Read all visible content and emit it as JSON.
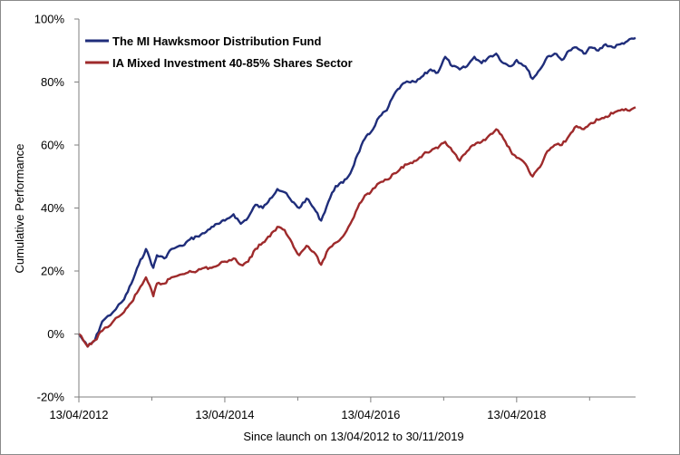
{
  "chart_data": {
    "type": "line",
    "title": "",
    "xlabel": "Since launch on 13/04/2012 to 30/11/2019",
    "ylabel": "Cumulative Performance",
    "x_range": [
      "13/04/2012",
      "30/11/2019"
    ],
    "ylim": [
      -20,
      100
    ],
    "y_unit": "%",
    "y_ticks": [
      -20,
      0,
      20,
      40,
      60,
      80,
      100
    ],
    "y_tick_labels": [
      "-20%",
      "0%",
      "20%",
      "40%",
      "60%",
      "80%",
      "100%"
    ],
    "x_tick_labels": [
      "13/04/2012",
      "13/04/2014",
      "13/04/2016",
      "13/04/2018"
    ],
    "grid": false,
    "legend_position": "top-left",
    "series": [
      {
        "name": "The MI Hawksmoor Distribution Fund",
        "color": "#1f2d7a",
        "x": [
          2012.28,
          2012.4,
          2012.5,
          2012.6,
          2012.75,
          2012.9,
          2013.0,
          2013.1,
          2013.2,
          2013.3,
          2013.35,
          2013.45,
          2013.55,
          2013.7,
          2013.8,
          2013.9,
          2014.0,
          2014.1,
          2014.2,
          2014.28,
          2014.4,
          2014.5,
          2014.6,
          2014.7,
          2014.8,
          2014.9,
          2015.0,
          2015.1,
          2015.2,
          2015.3,
          2015.4,
          2015.5,
          2015.6,
          2015.7,
          2015.8,
          2015.9,
          2016.0,
          2016.1,
          2016.2,
          2016.28,
          2016.4,
          2016.5,
          2016.6,
          2016.7,
          2016.8,
          2016.9,
          2017.0,
          2017.1,
          2017.2,
          2017.3,
          2017.4,
          2017.5,
          2017.6,
          2017.7,
          2017.8,
          2017.9,
          2018.0,
          2018.1,
          2018.2,
          2018.28,
          2018.4,
          2018.5,
          2018.6,
          2018.7,
          2018.8,
          2018.9,
          2019.0,
          2019.1,
          2019.2,
          2019.3,
          2019.4,
          2019.5,
          2019.6,
          2019.7,
          2019.8,
          2019.91
        ],
        "values": [
          0,
          -4,
          -2,
          4,
          7,
          11,
          16,
          22,
          27,
          21,
          25,
          24,
          27,
          28,
          30,
          31,
          32,
          34,
          35,
          36,
          38,
          35,
          37,
          41,
          40,
          43,
          46,
          45,
          42,
          40,
          43,
          40,
          36,
          42,
          47,
          48,
          51,
          57,
          62,
          64,
          69,
          71,
          76,
          79,
          80,
          80,
          82,
          84,
          83,
          88,
          85,
          84,
          85,
          88,
          86,
          88,
          89,
          86,
          85,
          87,
          85,
          81,
          84,
          88,
          89,
          87,
          90,
          91,
          89,
          91,
          90,
          92,
          91,
          92,
          93,
          94
        ]
      },
      {
        "name": "IA Mixed Investment 40-85% Shares Sector",
        "color": "#9e2a2b",
        "x": [
          2012.28,
          2012.4,
          2012.5,
          2012.6,
          2012.75,
          2012.9,
          2013.0,
          2013.1,
          2013.2,
          2013.3,
          2013.35,
          2013.45,
          2013.55,
          2013.7,
          2013.8,
          2013.9,
          2014.0,
          2014.1,
          2014.2,
          2014.28,
          2014.4,
          2014.5,
          2014.6,
          2014.7,
          2014.8,
          2014.9,
          2015.0,
          2015.1,
          2015.2,
          2015.3,
          2015.4,
          2015.5,
          2015.6,
          2015.7,
          2015.8,
          2015.9,
          2016.0,
          2016.1,
          2016.2,
          2016.28,
          2016.4,
          2016.5,
          2016.6,
          2016.7,
          2016.8,
          2016.9,
          2017.0,
          2017.1,
          2017.2,
          2017.3,
          2017.4,
          2017.5,
          2017.6,
          2017.7,
          2017.8,
          2017.9,
          2018.0,
          2018.1,
          2018.2,
          2018.28,
          2018.4,
          2018.5,
          2018.6,
          2018.7,
          2018.8,
          2018.9,
          2019.0,
          2019.1,
          2019.2,
          2019.3,
          2019.4,
          2019.5,
          2019.6,
          2019.7,
          2019.8,
          2019.91
        ],
        "values": [
          0,
          -4,
          -2,
          1,
          4,
          7,
          10,
          14,
          18,
          12,
          16,
          16,
          18,
          19,
          20,
          20,
          21,
          21,
          22,
          23,
          24,
          22,
          23,
          27,
          29,
          31,
          34,
          33,
          29,
          25,
          28,
          26,
          22,
          27,
          29,
          31,
          35,
          40,
          44,
          45,
          48,
          49,
          51,
          53,
          54,
          55,
          57,
          58,
          59,
          61,
          58,
          55,
          58,
          60,
          61,
          63,
          65,
          62,
          58,
          56,
          54,
          50,
          53,
          58,
          60,
          60,
          63,
          66,
          65,
          67,
          68,
          69,
          70,
          71,
          71,
          72
        ]
      }
    ]
  }
}
